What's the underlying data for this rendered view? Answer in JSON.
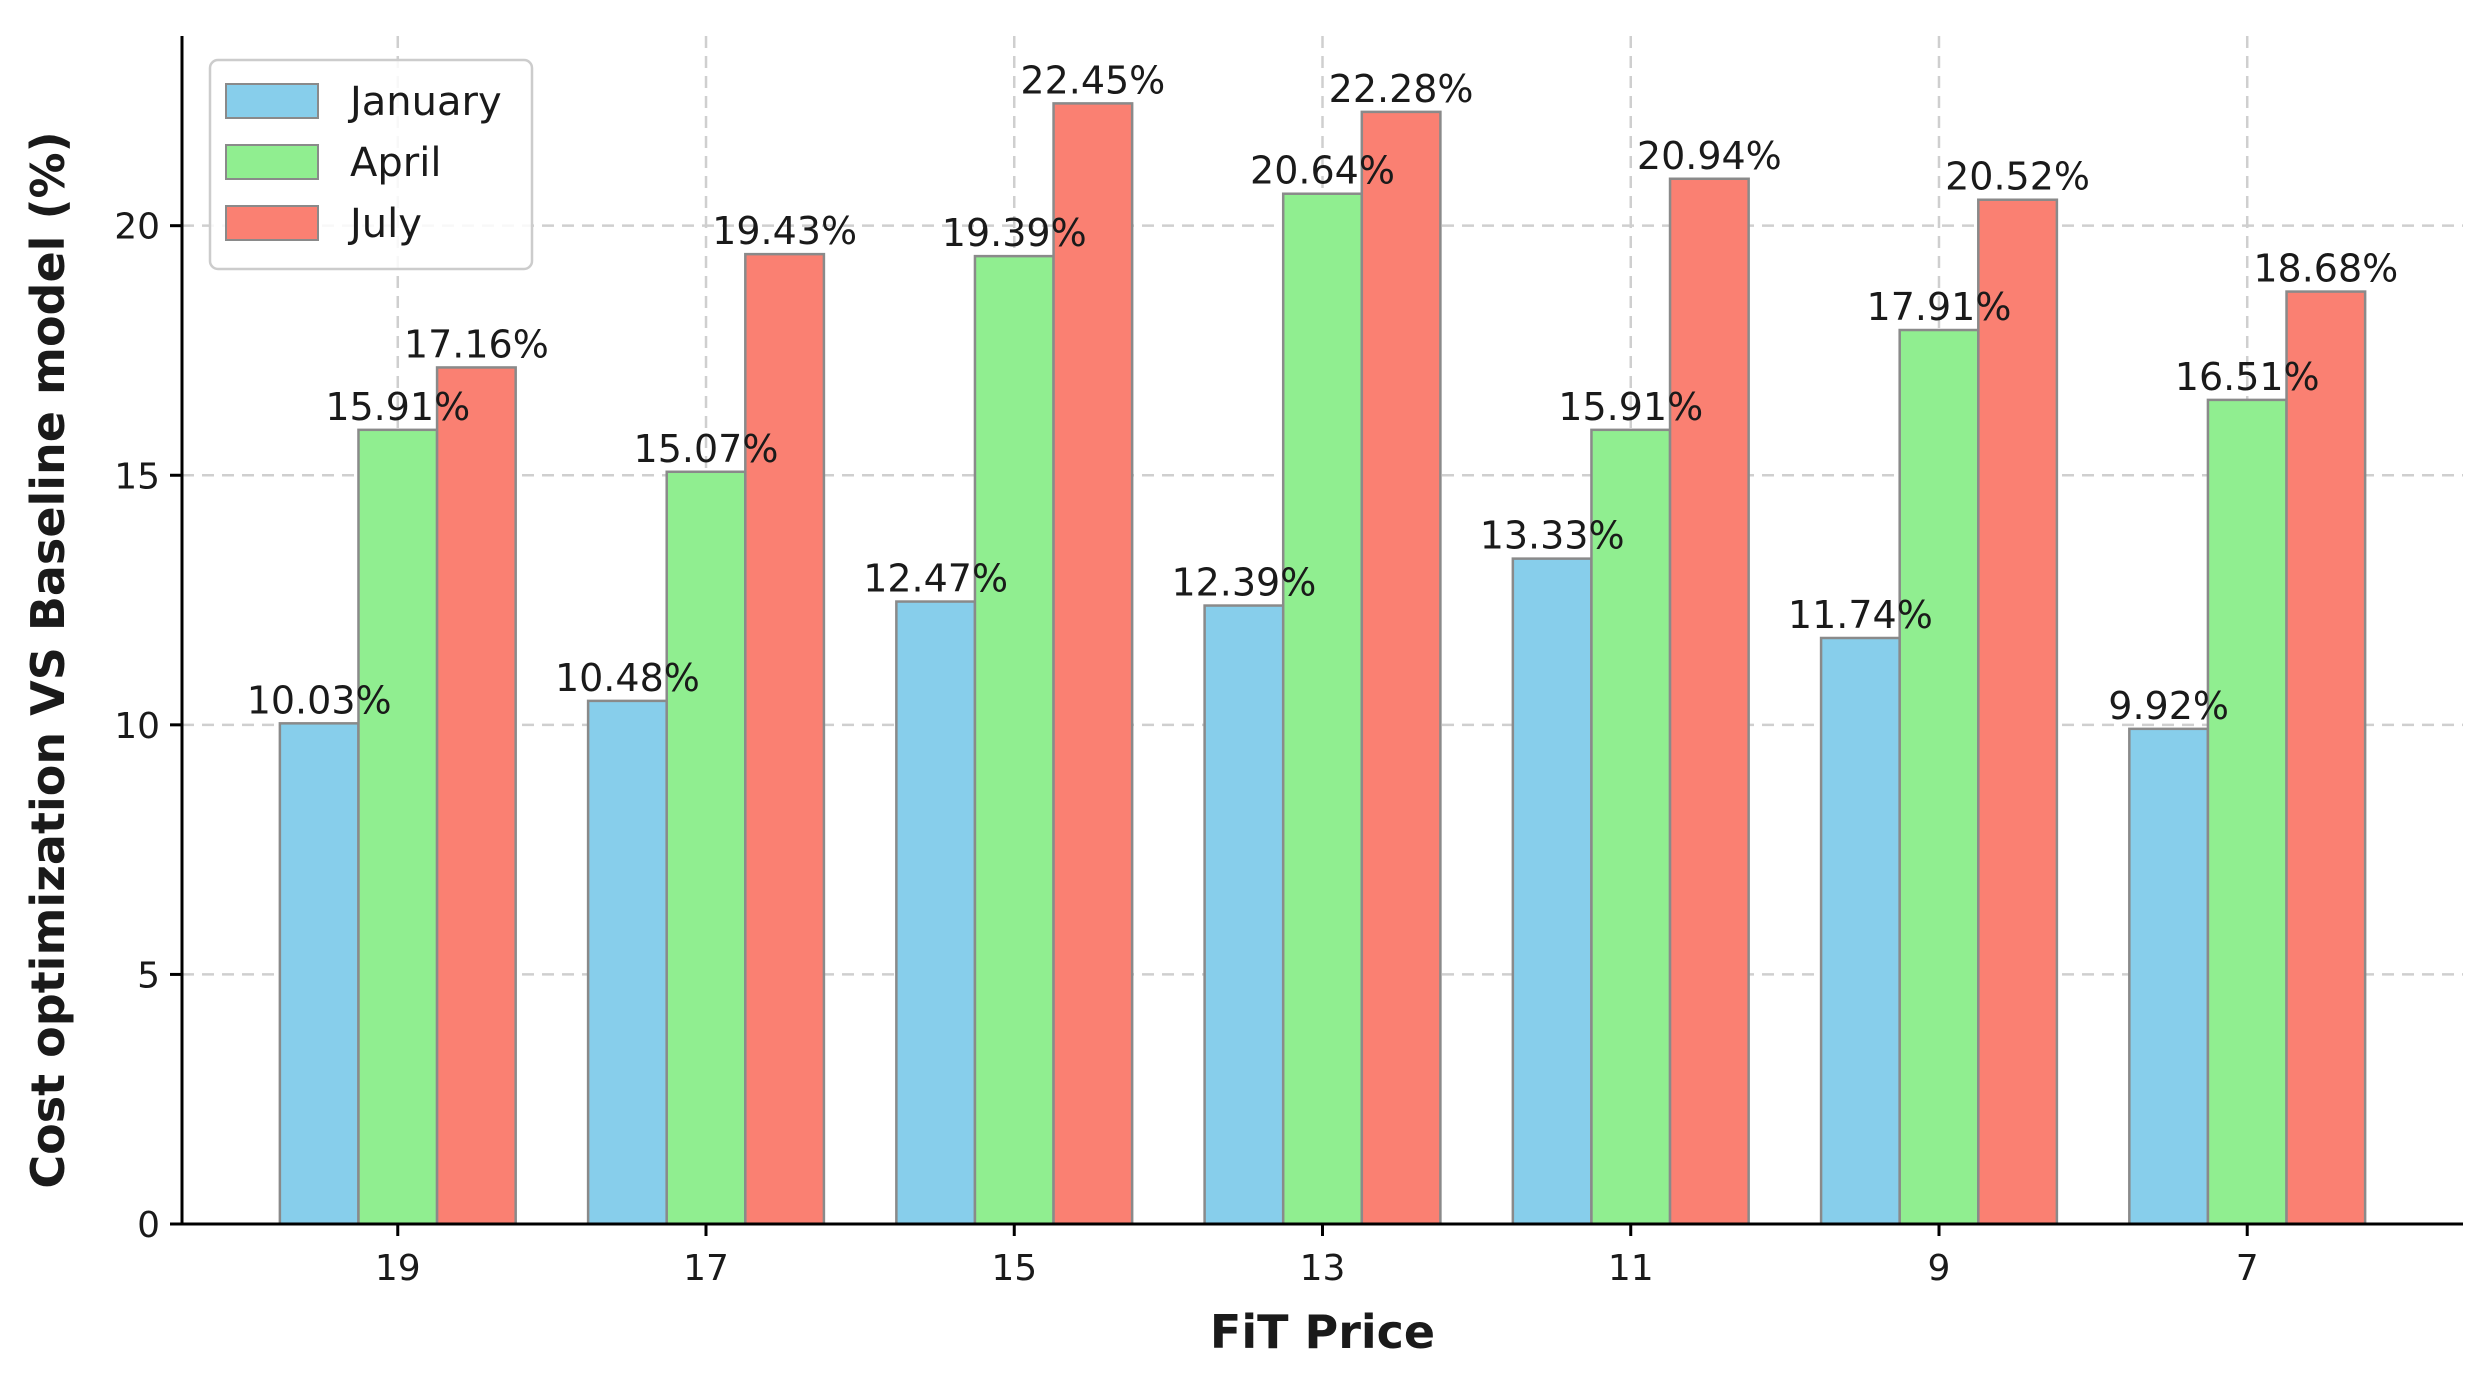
{
  "chart_data": {
    "type": "bar",
    "title": "",
    "xlabel": "FiT Price",
    "ylabel": "Cost optimization VS Baseline model (%)",
    "categories": [
      "19",
      "17",
      "15",
      "13",
      "11",
      "9",
      "7"
    ],
    "series": [
      {
        "name": "January",
        "color": "#87ceeb",
        "values": [
          10.03,
          10.48,
          12.47,
          12.39,
          13.33,
          11.74,
          9.92
        ]
      },
      {
        "name": "April",
        "color": "#90ee90",
        "values": [
          15.91,
          15.07,
          19.39,
          20.64,
          15.91,
          17.91,
          16.51
        ]
      },
      {
        "name": "July",
        "color": "#fa8072",
        "values": [
          17.16,
          19.43,
          22.45,
          22.28,
          20.94,
          20.52,
          18.68
        ]
      }
    ],
    "ylim": [
      0,
      23.8
    ],
    "yticks": [
      0,
      5,
      10,
      15,
      20
    ],
    "value_label_suffix": "%",
    "grid": true,
    "legend_position": "top-left"
  }
}
